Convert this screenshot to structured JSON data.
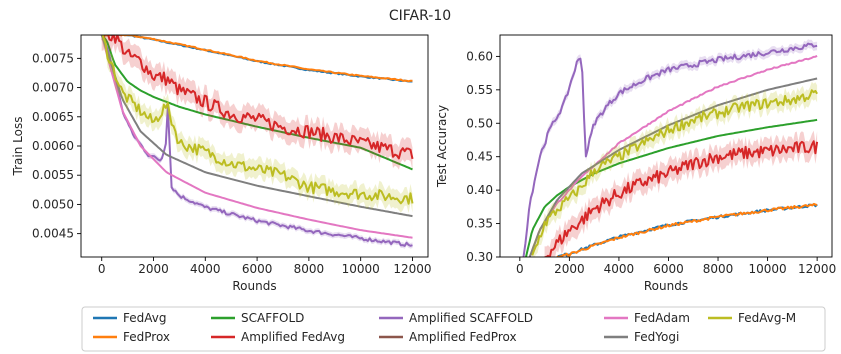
{
  "figure": {
    "suptitle": "CIFAR-10"
  },
  "series_names": [
    "FedAvg",
    "FedProx",
    "SCAFFOLD",
    "Amplified FedAvg",
    "Amplified SCAFFOLD",
    "Amplified FedProx",
    "FedAdam",
    "FedYogi",
    "FedAvg-M"
  ],
  "colors": {
    "FedAvg": "#1f77b4",
    "FedProx": "#ff7f0e",
    "SCAFFOLD": "#2ca02c",
    "Amplified FedAvg": "#d62728",
    "Amplified SCAFFOLD": "#9467bd",
    "Amplified FedProx": "#8c564b",
    "FedAdam": "#e377c2",
    "FedYogi": "#7f7f7f",
    "FedAvg-M": "#bcbd22"
  },
  "legend": {
    "placement": "bottom-center",
    "columns": [
      [
        "FedAvg",
        "FedProx"
      ],
      [
        "SCAFFOLD",
        "Amplified FedAvg"
      ],
      [
        "Amplified SCAFFOLD",
        "Amplified FedProx"
      ],
      [
        "FedAdam",
        "FedYogi"
      ],
      [
        "FedAvg-M"
      ]
    ]
  },
  "chart_data": [
    {
      "type": "line",
      "xlabel": "Rounds",
      "ylabel": "Train Loss",
      "xlim": [
        -800,
        12600
      ],
      "ylim": [
        0.0041,
        0.0079
      ],
      "xticks": [
        0,
        2000,
        4000,
        6000,
        8000,
        10000,
        12000
      ],
      "yticks": [
        0.0045,
        0.005,
        0.0055,
        0.006,
        0.0065,
        0.007,
        0.0075
      ],
      "ytick_labels": [
        "0.0045",
        "0.0050",
        "0.0055",
        "0.0060",
        "0.0065",
        "0.0070",
        "0.0075"
      ],
      "series": [
        {
          "name": "FedAvg",
          "x": [
            0,
            1000,
            2000,
            4000,
            6000,
            8000,
            10000,
            12000
          ],
          "y": [
            0.0079,
            0.0079,
            0.00782,
            0.00764,
            0.00745,
            0.0073,
            0.00719,
            0.0071
          ],
          "noise": 1e-05
        },
        {
          "name": "FedProx",
          "x": [
            0,
            1000,
            2000,
            4000,
            6000,
            8000,
            10000,
            12000
          ],
          "y": [
            0.0079,
            0.0079,
            0.00783,
            0.00765,
            0.00746,
            0.00731,
            0.0072,
            0.00711
          ],
          "noise": 1e-05
        },
        {
          "name": "SCAFFOLD",
          "x": [
            0,
            200,
            500,
            1000,
            1500,
            2000,
            3000,
            4000,
            6000,
            8000,
            10000,
            12000
          ],
          "y": [
            0.0079,
            0.0078,
            0.0074,
            0.0071,
            0.00695,
            0.00684,
            0.00667,
            0.00654,
            0.00633,
            0.00614,
            0.00597,
            0.0056
          ],
          "noise": 0.0
        },
        {
          "name": "Amplified FedAvg",
          "x": [
            0,
            500,
            1000,
            1500,
            2000,
            2500,
            3000,
            3500,
            4000,
            5000,
            6000,
            7000,
            8000,
            9000,
            10000,
            11000,
            12000
          ],
          "y": [
            0.0079,
            0.0079,
            0.00755,
            0.00745,
            0.0072,
            0.00715,
            0.00695,
            0.00685,
            0.00675,
            0.00655,
            0.00645,
            0.00632,
            0.00625,
            0.00615,
            0.00605,
            0.00595,
            0.00585
          ],
          "noise": 0.00012,
          "band": true
        },
        {
          "name": "Amplified SCAFFOLD",
          "x": [
            0,
            200,
            500,
            800,
            1200,
            1800,
            2300,
            2500,
            2550,
            2700,
            3000,
            4000,
            6000,
            8000,
            10000,
            12000
          ],
          "y": [
            0.0079,
            0.0077,
            0.0072,
            0.0066,
            0.0062,
            0.00585,
            0.00575,
            0.0061,
            0.0067,
            0.0053,
            0.00515,
            0.00495,
            0.00472,
            0.00455,
            0.00442,
            0.0043
          ],
          "noise": 3e-05,
          "band": true
        },
        {
          "name": "Amplified FedProx",
          "x": [
            0,
            12000
          ],
          "y": [
            0.0079,
            0.0079
          ],
          "noise": 0.0,
          "hidden": true
        },
        {
          "name": "FedAdam",
          "x": [
            0,
            300,
            800,
            1500,
            2500,
            4000,
            6000,
            8000,
            10000,
            12000
          ],
          "y": [
            0.0079,
            0.0074,
            0.0066,
            0.006,
            0.00555,
            0.0052,
            0.00494,
            0.00474,
            0.00456,
            0.00443
          ],
          "noise": 0.0
        },
        {
          "name": "FedYogi",
          "x": [
            0,
            300,
            800,
            1500,
            2500,
            4000,
            6000,
            8000,
            10000,
            12000
          ],
          "y": [
            0.0079,
            0.0075,
            0.0068,
            0.00625,
            0.00585,
            0.00555,
            0.00532,
            0.00514,
            0.00496,
            0.0048
          ],
          "noise": 0.0
        },
        {
          "name": "FedAvg-M",
          "x": [
            0,
            300,
            800,
            1500,
            2000,
            2500,
            3000,
            4000,
            5000,
            6000,
            7000,
            8000,
            9000,
            10000,
            11000,
            12000
          ],
          "y": [
            0.0079,
            0.0075,
            0.0069,
            0.0066,
            0.0064,
            0.0067,
            0.00605,
            0.0059,
            0.0057,
            0.0056,
            0.0055,
            0.0053,
            0.00523,
            0.00518,
            0.00514,
            0.0051
          ],
          "noise": 0.0001,
          "band": true
        }
      ]
    },
    {
      "type": "line",
      "xlabel": "Rounds",
      "ylabel": "Test Accuracy",
      "xlim": [
        -800,
        12600
      ],
      "ylim": [
        0.3,
        0.632
      ],
      "xticks": [
        0,
        2000,
        4000,
        6000,
        8000,
        10000,
        12000
      ],
      "yticks": [
        0.3,
        0.35,
        0.4,
        0.45,
        0.5,
        0.55,
        0.6
      ],
      "ytick_labels": [
        "0.30",
        "0.35",
        "0.40",
        "0.45",
        "0.50",
        "0.55",
        "0.60"
      ],
      "series": [
        {
          "name": "FedAvg",
          "x": [
            1500,
            2000,
            3000,
            4000,
            6000,
            8000,
            10000,
            12000
          ],
          "y": [
            0.3,
            0.305,
            0.318,
            0.33,
            0.348,
            0.36,
            0.37,
            0.378
          ],
          "noise": 0.002
        },
        {
          "name": "FedProx",
          "x": [
            1500,
            2000,
            3000,
            4000,
            6000,
            8000,
            10000,
            12000
          ],
          "y": [
            0.3,
            0.304,
            0.317,
            0.329,
            0.347,
            0.36,
            0.37,
            0.378
          ],
          "noise": 0.002
        },
        {
          "name": "SCAFFOLD",
          "x": [
            250,
            500,
            1000,
            1500,
            2000,
            3000,
            4000,
            6000,
            8000,
            10000,
            12000
          ],
          "y": [
            0.3,
            0.34,
            0.375,
            0.392,
            0.405,
            0.425,
            0.44,
            0.463,
            0.481,
            0.494,
            0.505
          ],
          "noise": 0.0
        },
        {
          "name": "Amplified FedAvg",
          "x": [
            1000,
            1500,
            2000,
            2500,
            3000,
            4000,
            5000,
            6000,
            7000,
            8000,
            9000,
            10000,
            11000,
            12000
          ],
          "y": [
            0.3,
            0.32,
            0.34,
            0.355,
            0.372,
            0.395,
            0.412,
            0.425,
            0.44,
            0.45,
            0.455,
            0.458,
            0.462,
            0.465
          ],
          "noise": 0.01,
          "band": true
        },
        {
          "name": "Amplified SCAFFOLD",
          "x": [
            150,
            400,
            800,
            1200,
            1800,
            2300,
            2500,
            2650,
            3000,
            3500,
            4000,
            5000,
            6000,
            8000,
            10000,
            12000
          ],
          "y": [
            0.3,
            0.38,
            0.45,
            0.49,
            0.53,
            0.59,
            0.6,
            0.45,
            0.5,
            0.525,
            0.545,
            0.565,
            0.58,
            0.595,
            0.606,
            0.618
          ],
          "noise": 0.004,
          "band": true
        },
        {
          "name": "Amplified FedProx",
          "x": [
            0,
            12000
          ],
          "y": [
            0.3,
            0.3
          ],
          "noise": 0.0,
          "hidden": true
        },
        {
          "name": "FedAdam",
          "x": [
            400,
            800,
            1500,
            2500,
            4000,
            6000,
            8000,
            10000,
            12000
          ],
          "y": [
            0.3,
            0.34,
            0.38,
            0.42,
            0.47,
            0.518,
            0.555,
            0.58,
            0.6
          ],
          "noise": 0.001
        },
        {
          "name": "FedYogi",
          "x": [
            400,
            800,
            1500,
            2500,
            4000,
            6000,
            8000,
            10000,
            12000
          ],
          "y": [
            0.3,
            0.34,
            0.385,
            0.425,
            0.46,
            0.497,
            0.527,
            0.55,
            0.567
          ],
          "noise": 0.0
        },
        {
          "name": "FedAvg-M",
          "x": [
            500,
            1000,
            1500,
            2500,
            3000,
            4000,
            5000,
            6000,
            7000,
            8000,
            9000,
            10000,
            11000,
            12000
          ],
          "y": [
            0.3,
            0.35,
            0.37,
            0.405,
            0.43,
            0.45,
            0.47,
            0.49,
            0.505,
            0.515,
            0.525,
            0.53,
            0.535,
            0.545
          ],
          "noise": 0.008,
          "band": true
        }
      ]
    }
  ]
}
